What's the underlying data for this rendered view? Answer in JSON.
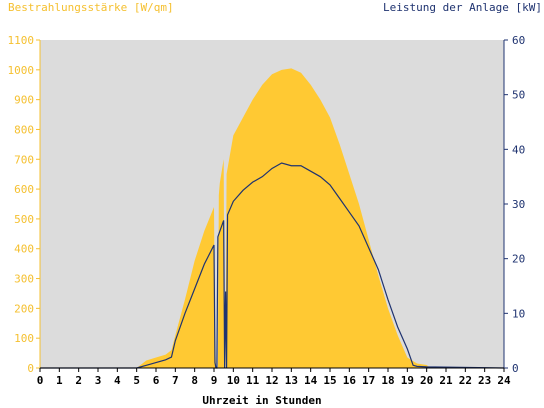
{
  "chart_data": {
    "type": "area",
    "left_axis_title": "Bestrahlungsstärke [W/qm]",
    "right_axis_title": "Leistung der Anlage [kW]",
    "xlabel": "Uhrzeit in Stunden",
    "xlim": [
      0,
      24
    ],
    "ylim_left": [
      0,
      1100
    ],
    "ylim_right": [
      0,
      60
    ],
    "x_ticks": [
      "0",
      "1",
      "2",
      "3",
      "4",
      "5",
      "6",
      "7",
      "8",
      "9",
      "10",
      "11",
      "12",
      "13",
      "14",
      "15",
      "16",
      "17",
      "18",
      "19",
      "20",
      "21",
      "22",
      "23",
      "24"
    ],
    "y_left_ticks": [
      "0",
      "100",
      "200",
      "300",
      "400",
      "500",
      "600",
      "700",
      "800",
      "900",
      "1000",
      "1100"
    ],
    "y_right_ticks": [
      "0",
      "10",
      "20",
      "30",
      "40",
      "50",
      "60"
    ],
    "grid": false,
    "colors": {
      "irradiance": "#ffc933",
      "power": "#1f3370",
      "plot_background": "#dcdcdc",
      "left_axis_text": "#f5c030",
      "right_axis_text": "#1f3370",
      "axis_text": "#000000"
    },
    "series": [
      {
        "axis": "left",
        "style": "area",
        "x": [
          0,
          5.0,
          5.5,
          6.0,
          6.5,
          6.8,
          7.0,
          7.5,
          8.0,
          8.5,
          9.0,
          9.05,
          9.1,
          9.2,
          9.25,
          9.3,
          9.5,
          9.55,
          9.6,
          9.65,
          10.0,
          10.5,
          11.0,
          11.5,
          12.0,
          12.5,
          13.0,
          13.5,
          14.0,
          14.5,
          15.0,
          15.5,
          16.0,
          16.5,
          17.0,
          17.5,
          18.0,
          18.5,
          19.0,
          19.5,
          20.0,
          20.2,
          24
        ],
        "y": [
          0,
          0,
          25,
          35,
          45,
          60,
          110,
          230,
          360,
          460,
          540,
          100,
          0,
          0,
          580,
          620,
          700,
          0,
          0,
          650,
          780,
          840,
          900,
          950,
          985,
          1000,
          1005,
          990,
          950,
          900,
          840,
          750,
          650,
          550,
          430,
          310,
          200,
          110,
          35,
          15,
          10,
          0,
          0
        ]
      },
      {
        "axis": "right",
        "style": "line",
        "x": [
          0,
          5.0,
          5.5,
          6.0,
          6.5,
          6.8,
          7.0,
          7.5,
          8.0,
          8.5,
          9.0,
          9.05,
          9.1,
          9.15,
          9.2,
          9.3,
          9.5,
          9.55,
          9.6,
          9.65,
          9.7,
          10.0,
          10.5,
          11.0,
          11.5,
          12.0,
          12.5,
          13.0,
          13.5,
          14.0,
          14.5,
          15.0,
          15.5,
          16.0,
          16.5,
          17.0,
          17.5,
          18.0,
          18.5,
          19.0,
          19.3,
          19.5,
          20.0,
          24
        ],
        "y": [
          0,
          0,
          0.5,
          1.0,
          1.5,
          2.0,
          5,
          10,
          14.5,
          19,
          22.5,
          1,
          0,
          0,
          24,
          25,
          27,
          0,
          14,
          0,
          28,
          30.5,
          32.5,
          34,
          35,
          36.5,
          37.5,
          37,
          37,
          36,
          35,
          33.5,
          31,
          28.5,
          26,
          22,
          18,
          12.5,
          7.5,
          3.5,
          0.5,
          0.3,
          0.2,
          0
        ]
      }
    ]
  }
}
